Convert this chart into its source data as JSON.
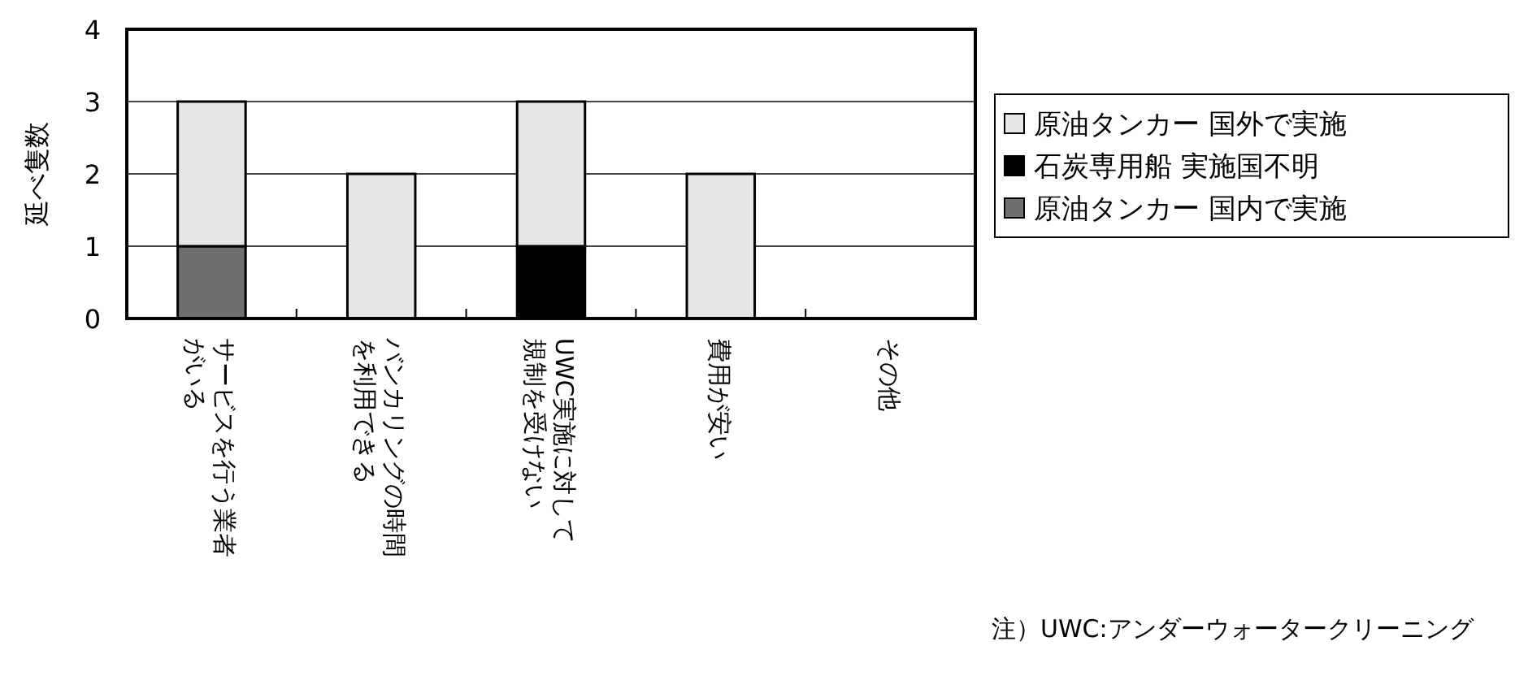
{
  "chart_data": {
    "type": "bar",
    "stacked": true,
    "ylabel": "延べ隻数",
    "categories": [
      "サービスを行う業者がいる",
      "バンカリングの時間を利用できる",
      "UWC実施に対して規制を受けない",
      "費用が安い",
      "その他"
    ],
    "series": [
      {
        "name": "原油タンカー 国内で実施",
        "color": "#6e6e6e",
        "values": [
          1,
          0,
          0,
          0,
          0
        ]
      },
      {
        "name": "石炭専用船 実施国不明",
        "color": "#000000",
        "values": [
          0,
          0,
          1,
          0,
          0
        ]
      },
      {
        "name": "原油タンカー 国外で実施",
        "color": "#e6e6e6",
        "values": [
          2,
          2,
          2,
          2,
          0
        ]
      }
    ],
    "ylim": [
      0,
      4
    ],
    "yticks": [
      0,
      1,
      2,
      3,
      4
    ],
    "grid": "y",
    "legend": "right",
    "annotations": [
      "注）UWC:アンダーウォータークリーニング"
    ]
  }
}
